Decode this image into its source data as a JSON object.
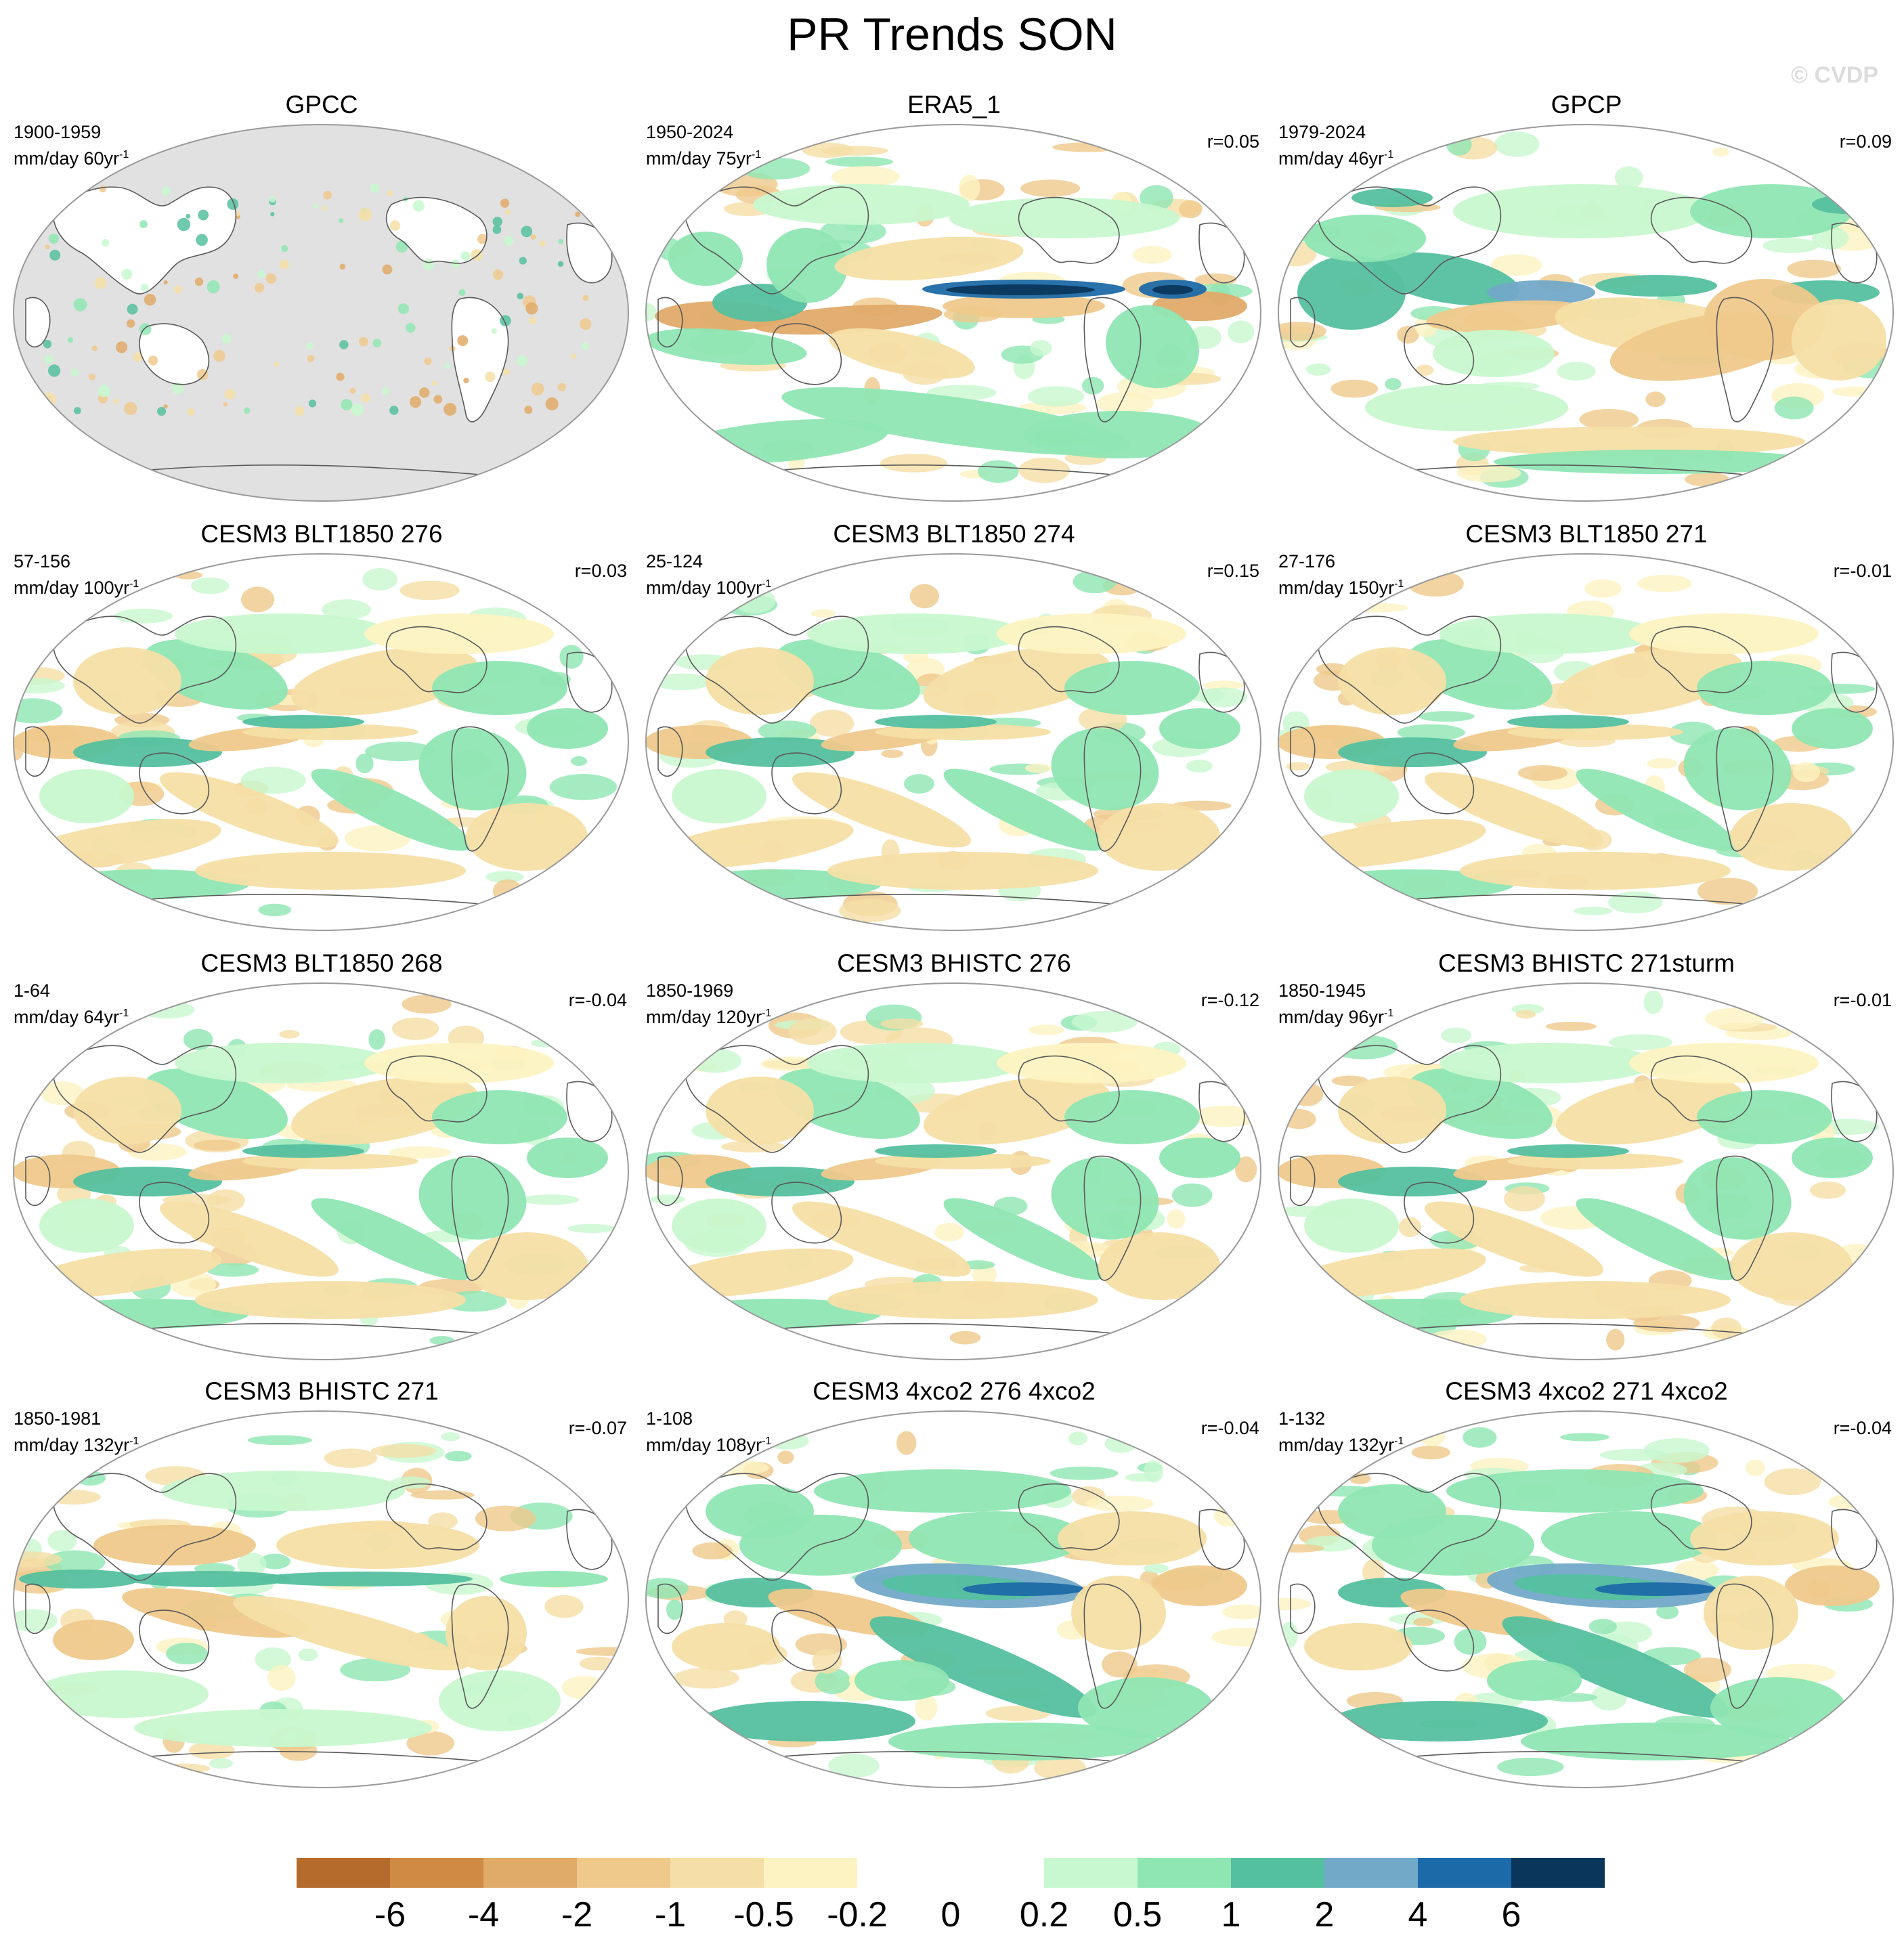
{
  "title": "PR Trends SON",
  "watermark": "© CVDP",
  "colors": {
    "land_mask": "#e1e1e1",
    "coast": "#5a5a5a",
    "border": "#9a9a9a"
  },
  "panels": [
    {
      "title": "GPCC",
      "period": "1900-1959",
      "units": "mm/day 60yr",
      "r": "",
      "style": "gpcc"
    },
    {
      "title": "ERA5_1",
      "period": "1950-2024",
      "units": "mm/day 75yr",
      "r": "r=0.05",
      "style": "era5"
    },
    {
      "title": "GPCP",
      "period": "1979-2024",
      "units": "mm/day 46yr",
      "r": "r=0.09",
      "style": "gpcp"
    },
    {
      "title": "CESM3 BLT1850 276",
      "period": "57-156",
      "units": "mm/day 100yr",
      "r": "r=0.03",
      "style": "model"
    },
    {
      "title": "CESM3 BLT1850 274",
      "period": "25-124",
      "units": "mm/day 100yr",
      "r": "r=0.15",
      "style": "model"
    },
    {
      "title": "CESM3 BLT1850 271",
      "period": "27-176",
      "units": "mm/day 150yr",
      "r": "r=-0.01",
      "style": "model"
    },
    {
      "title": "CESM3 BLT1850 268",
      "period": "1-64",
      "units": "mm/day 64yr",
      "r": "r=-0.04",
      "style": "model"
    },
    {
      "title": "CESM3 BHISTC 276",
      "period": "1850-1969",
      "units": "mm/day 120yr",
      "r": "r=-0.12",
      "style": "model"
    },
    {
      "title": "CESM3 BHISTC 271sturm",
      "period": "1850-1945",
      "units": "mm/day 96yr",
      "r": "r=-0.01",
      "style": "model"
    },
    {
      "title": "CESM3 BHISTC 271",
      "period": "1850-1981",
      "units": "mm/day 132yr",
      "r": "r=-0.07",
      "style": "hist"
    },
    {
      "title": "CESM3 4xco2 276 4xco2",
      "period": "1-108",
      "units": "mm/day 108yr",
      "r": "r=-0.04",
      "style": "co2"
    },
    {
      "title": "CESM3 4xco2 271 4xco2",
      "period": "1-132",
      "units": "mm/day 132yr",
      "r": "r=-0.04",
      "style": "co2"
    }
  ],
  "units_sup": "-1",
  "colorbar": {
    "colors": [
      "#b56b2c",
      "#cf8a43",
      "#e0aa69",
      "#efc98c",
      "#f5dfa6",
      "#fdf3c2",
      "#ffffff",
      "#ffffff",
      "#c8f8cf",
      "#8fe6b3",
      "#55c09f",
      "#72a9c8",
      "#1d6aa8",
      "#0a365b"
    ],
    "labels": [
      "-6",
      "-4",
      "-2",
      "-1",
      "-0.5",
      "-0.2",
      "0",
      "0.2",
      "0.5",
      "1",
      "2",
      "4",
      "6"
    ]
  }
}
